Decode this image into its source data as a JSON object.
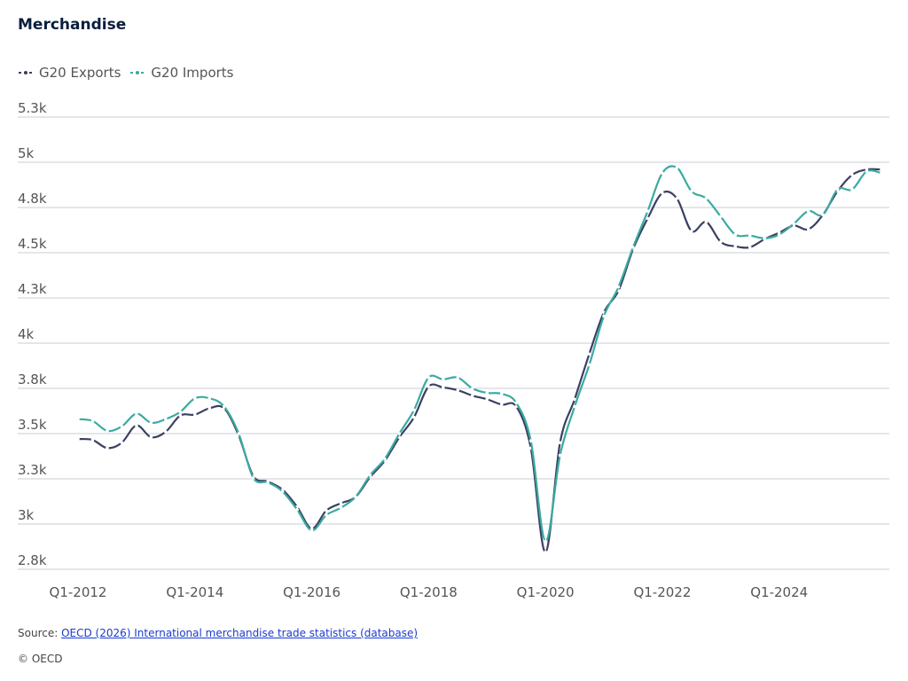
{
  "title": "Merchandise",
  "legend": [
    {
      "label": "G20 Exports",
      "color": "#3b4063"
    },
    {
      "label": "G20 Imports",
      "color": "#3aaba0"
    }
  ],
  "footer": {
    "source_prefix": "Source: ",
    "source_link": "OECD (2026) International merchandise trade statistics (database)",
    "copyright": "© OECD"
  },
  "chart_data": {
    "type": "line",
    "y_ticks": [
      {
        "value": 2750,
        "label": "2.8k"
      },
      {
        "value": 3000,
        "label": "3k"
      },
      {
        "value": 3250,
        "label": "3.3k"
      },
      {
        "value": 3500,
        "label": "3.5k"
      },
      {
        "value": 3750,
        "label": "3.8k"
      },
      {
        "value": 4000,
        "label": "4k"
      },
      {
        "value": 4250,
        "label": "4.3k"
      },
      {
        "value": 4500,
        "label": "4.5k"
      },
      {
        "value": 4750,
        "label": "4.8k"
      },
      {
        "value": 5000,
        "label": "5k"
      },
      {
        "value": 5250,
        "label": "5.3k"
      }
    ],
    "ylim": [
      2750,
      5250
    ],
    "x_ticks": [
      "Q1-2012",
      "Q1-2014",
      "Q1-2016",
      "Q1-2018",
      "Q1-2020",
      "Q1-2022",
      "Q1-2024"
    ],
    "x": [
      "Q1-2012",
      "Q2-2012",
      "Q3-2012",
      "Q4-2012",
      "Q1-2013",
      "Q2-2013",
      "Q3-2013",
      "Q4-2013",
      "Q1-2014",
      "Q2-2014",
      "Q3-2014",
      "Q4-2014",
      "Q1-2015",
      "Q2-2015",
      "Q3-2015",
      "Q4-2015",
      "Q1-2016",
      "Q2-2016",
      "Q3-2016",
      "Q4-2016",
      "Q1-2017",
      "Q2-2017",
      "Q3-2017",
      "Q4-2017",
      "Q1-2018",
      "Q2-2018",
      "Q3-2018",
      "Q4-2018",
      "Q1-2019",
      "Q2-2019",
      "Q3-2019",
      "Q4-2019",
      "Q1-2020",
      "Q2-2020",
      "Q3-2020",
      "Q4-2020",
      "Q1-2021",
      "Q2-2021",
      "Q3-2021",
      "Q4-2021",
      "Q1-2022",
      "Q2-2022",
      "Q3-2022",
      "Q4-2022",
      "Q1-2023",
      "Q2-2023",
      "Q3-2023",
      "Q4-2023",
      "Q1-2024",
      "Q2-2024",
      "Q3-2024",
      "Q4-2024",
      "Q1-2025",
      "Q2-2025",
      "Q3-2025",
      "Q4-2025"
    ],
    "series": [
      {
        "name": "G20 Exports",
        "color": "#3b4063",
        "values": [
          3470,
          3465,
          3420,
          3450,
          3545,
          3480,
          3510,
          3600,
          3605,
          3640,
          3640,
          3490,
          3265,
          3235,
          3190,
          3095,
          2975,
          3075,
          3115,
          3150,
          3260,
          3350,
          3480,
          3590,
          3760,
          3755,
          3740,
          3710,
          3690,
          3660,
          3650,
          3420,
          2845,
          3450,
          3690,
          3940,
          4170,
          4290,
          4520,
          4690,
          4830,
          4800,
          4620,
          4670,
          4560,
          4535,
          4530,
          4575,
          4610,
          4650,
          4630,
          4710,
          4840,
          4930,
          4960,
          4960
        ]
      },
      {
        "name": "G20 Imports",
        "color": "#3aaba0",
        "values": [
          3580,
          3570,
          3515,
          3540,
          3610,
          3560,
          3580,
          3620,
          3695,
          3695,
          3650,
          3500,
          3255,
          3230,
          3180,
          3080,
          2965,
          3050,
          3090,
          3150,
          3270,
          3360,
          3500,
          3630,
          3810,
          3800,
          3810,
          3750,
          3725,
          3720,
          3670,
          3460,
          2905,
          3380,
          3650,
          3880,
          4150,
          4310,
          4530,
          4730,
          4940,
          4970,
          4840,
          4800,
          4700,
          4600,
          4595,
          4580,
          4600,
          4660,
          4730,
          4710,
          4850,
          4850,
          4950,
          4940
        ]
      }
    ]
  }
}
